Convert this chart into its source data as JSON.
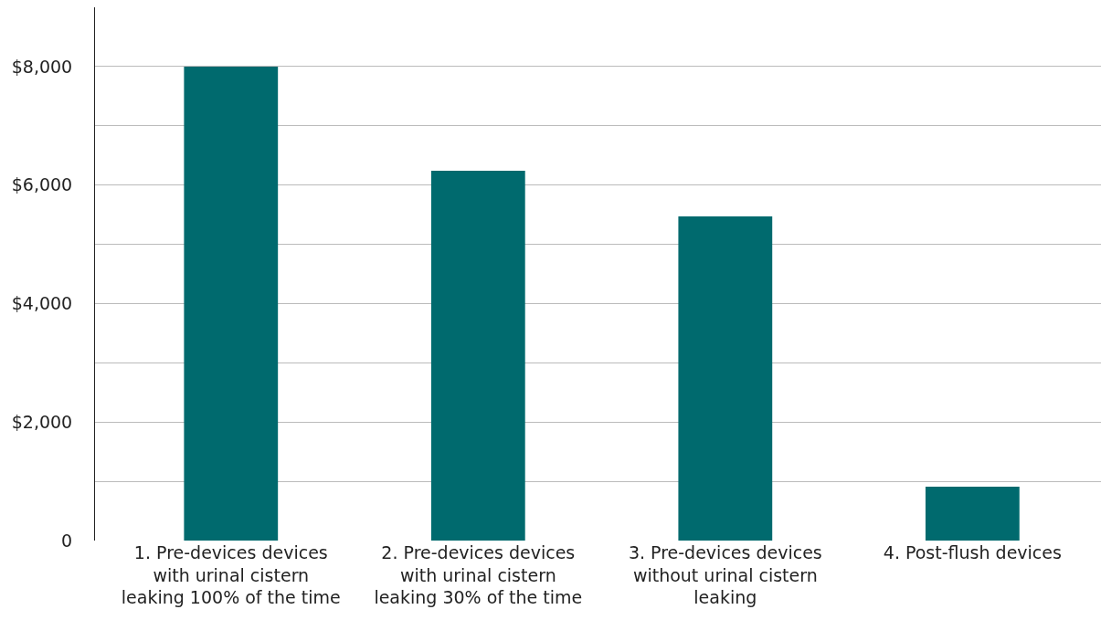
{
  "chart_data": {
    "type": "bar",
    "categories": [
      "1. Pre-devices devices with urinal cistern leaking 100% of the time",
      "2. Pre-devices devices with urinal cistern leaking 30% of the time",
      "3. Pre-devices devices without urinal cistern leaking",
      "4. Post-flush devices"
    ],
    "values": [
      8000,
      6240,
      5470,
      910
    ],
    "color": "#006a6e",
    "ylim": [
      0,
      9000
    ],
    "yticks": [
      0,
      {
        "value": 1000,
        "label": null
      },
      {
        "value": 2000,
        "label": "$2,000"
      },
      {
        "value": 3000,
        "label": null
      },
      {
        "value": 4000,
        "label": "$4,000"
      },
      {
        "value": 5000,
        "label": null
      },
      {
        "value": 6000,
        "label": "$6,000"
      },
      {
        "value": 7000,
        "label": null
      },
      {
        "value": 8000,
        "label": "$8,000"
      }
    ],
    "grid": "y",
    "legend": false
  }
}
